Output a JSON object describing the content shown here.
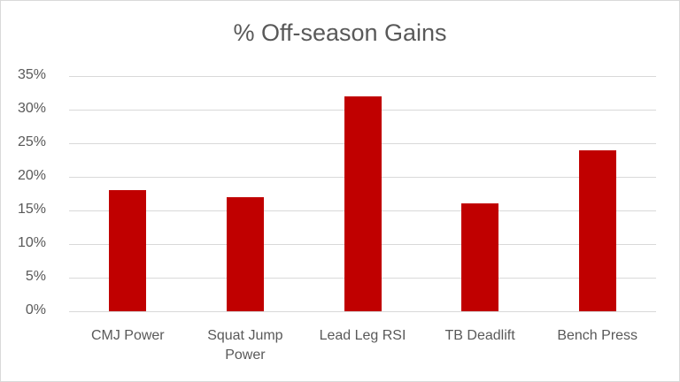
{
  "chart_data": {
    "type": "bar",
    "title": "% Off-season Gains",
    "xlabel": "",
    "ylabel": "",
    "categories": [
      "CMJ Power",
      "Squat Jump Power",
      "Lead Leg RSI",
      "TB Deadlift",
      "Bench Press"
    ],
    "x_labels_display": [
      [
        "CMJ Power"
      ],
      [
        "Squat Jump",
        "Power"
      ],
      [
        "Lead Leg RSI"
      ],
      [
        "TB Deadlift"
      ],
      [
        "Bench Press"
      ]
    ],
    "values": [
      18,
      17,
      32,
      16,
      24
    ],
    "value_format": "percent",
    "ylim": [
      0,
      35
    ],
    "yticks": [
      "0%",
      "5%",
      "10%",
      "15%",
      "20%",
      "25%",
      "30%",
      "35%"
    ],
    "grid": true,
    "legend": "none",
    "bar_color": "#c00000"
  }
}
